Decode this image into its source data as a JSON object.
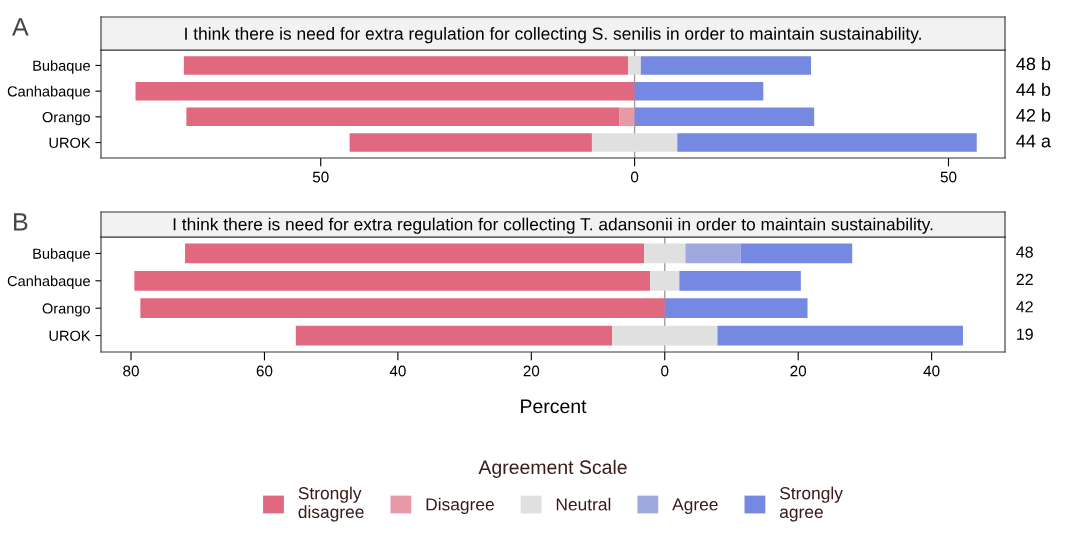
{
  "chart_data": [
    {
      "type": "bar",
      "orientation": "horizontal",
      "title": "I think there is need for extra regulation for collecting S. senilis in order to maintain sustainability.",
      "categories": [
        "Bubaque",
        "Canhabaque",
        "Orango",
        "UROK"
      ],
      "series": [
        {
          "name": "Strongly\ndisagree",
          "color": "#e0687f",
          "base": [
            -71.8,
            -79.5,
            -71.4,
            -45.4
          ],
          "values": [
            70.8,
            79.5,
            69.0,
            38.6
          ]
        },
        {
          "name": "Disagree",
          "color": "#e899a8",
          "base": [
            null,
            null,
            -2.4,
            null
          ],
          "values": [
            null,
            null,
            2.4,
            null
          ]
        },
        {
          "name": "Neutral",
          "color": "#e0e0e0",
          "base": [
            -1.0,
            null,
            null,
            -6.8
          ],
          "values": [
            2.1,
            null,
            null,
            13.6
          ]
        },
        {
          "name": "Agree",
          "color": "#a0a8e0",
          "base": [
            null,
            null,
            null,
            null
          ],
          "values": [
            null,
            null,
            null,
            null
          ]
        },
        {
          "name": "Strongly\nagree",
          "color": "#7589e3",
          "base": [
            1.0,
            0,
            0,
            6.8
          ],
          "values": [
            27.1,
            20.5,
            28.6,
            47.7
          ]
        }
      ],
      "xlim": [
        -85,
        59
      ],
      "xticks": [
        {
          "value": -50,
          "label": "50"
        },
        0,
        50
      ],
      "ref_lines": [
        {
          "axis": "x",
          "value": 0,
          "color": "#a0a0a0"
        }
      ],
      "annotations": [
        "A",
        "48 b",
        "44 b",
        "42 b",
        "44 a"
      ],
      "legend_title": "Agreement Scale",
      "grid": false,
      "legend": "bottom"
    },
    {
      "type": "bar",
      "orientation": "horizontal",
      "title": "I think there is need for extra regulation for collecting T. adansonii in order to maintain sustainability.",
      "categories": [
        "Bubaque",
        "Canhabaque",
        "Orango",
        "UROK"
      ],
      "series": [
        {
          "color": "#e0687f",
          "base": [
            -71.9,
            -79.5,
            -78.6,
            -55.3
          ],
          "values": [
            68.8,
            77.3,
            78.6,
            47.4
          ]
        },
        {
          "color": "#e899a8",
          "base": [
            null,
            null,
            null,
            null
          ],
          "values": [
            null,
            null,
            null,
            null
          ]
        },
        {
          "color": "#e0e0e0",
          "base": [
            -3.1,
            -2.2,
            null,
            -7.9
          ],
          "values": [
            6.2,
            4.5,
            null,
            15.8
          ]
        },
        {
          "color": "#a0a8e0",
          "base": [
            3.1,
            null,
            null,
            null
          ],
          "values": [
            8.3,
            null,
            null,
            null
          ]
        },
        {
          "color": "#7589e3",
          "base": [
            11.4,
            2.2,
            0,
            7.9
          ],
          "values": [
            16.7,
            18.2,
            21.4,
            36.8
          ]
        }
      ],
      "xlim": [
        -84.5,
        51
      ],
      "xticks": [
        {
          "value": -80,
          "label": "80"
        },
        {
          "value": -60,
          "label": "60"
        },
        {
          "value": -40,
          "label": "40"
        },
        {
          "value": -20,
          "label": "20"
        },
        0,
        20,
        40
      ],
      "xlabel": "Percent",
      "ref_lines": [
        {
          "axis": "x",
          "value": 0,
          "color": "#a0a0a0"
        }
      ],
      "annotations": [
        "B",
        "48",
        "22",
        "42",
        "19"
      ],
      "grid": false
    }
  ]
}
